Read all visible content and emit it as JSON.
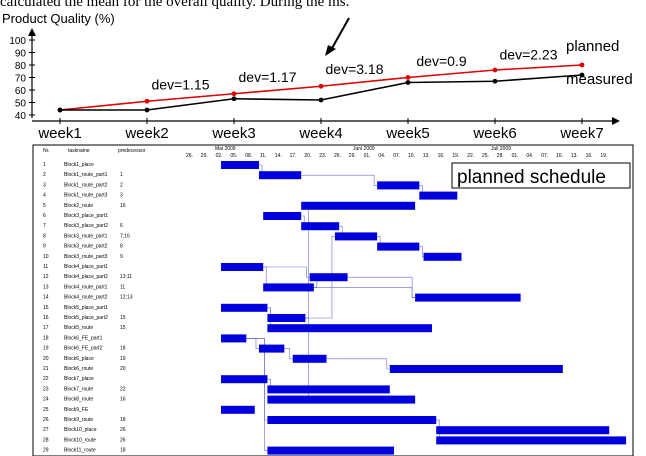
{
  "caption_fragment": "calculated the mean for the overall quality. During the ms.",
  "chart_data": [
    {
      "type": "line",
      "title": "Product Quality (%)",
      "categories": [
        "week1",
        "week2",
        "week3",
        "week4",
        "week5",
        "week6",
        "week7"
      ],
      "yticks": [
        40,
        50,
        60,
        70,
        80,
        90,
        100
      ],
      "ylim": [
        40,
        100
      ],
      "series": [
        {
          "name": "planned",
          "color": "#e00000",
          "values": [
            44,
            51,
            57,
            63,
            70,
            76,
            80
          ]
        },
        {
          "name": "measured",
          "color": "#000000",
          "values": [
            44,
            44,
            53,
            52,
            66,
            67,
            72
          ]
        }
      ],
      "annotations": [
        "dev=1.15",
        "dev=1.17",
        "dev=3.18",
        "dev=0.9",
        "dev=2.23"
      ],
      "arrow_target_week": "week4"
    }
  ],
  "schedule": {
    "label": "planned schedule",
    "headers": {
      "nr": "Nr.",
      "taskname": "taskname",
      "pred": "predecessor"
    },
    "months": [
      "Mai 2009",
      "Juni 2009",
      "Juli 2009"
    ],
    "days": [
      "26.",
      "29.",
      "02.",
      "05.",
      "08.",
      "11.",
      "14.",
      "17.",
      "20.",
      "23.",
      "26.",
      "29.",
      "01.",
      "04.",
      "07.",
      "10.",
      "13.",
      "16.",
      "19.",
      "22.",
      "25.",
      "28.",
      "01.",
      "04.",
      "07.",
      "10.",
      "13.",
      "16.",
      "19."
    ],
    "bar_color": "#0000dd",
    "tasks": [
      {
        "nr": "1",
        "name": "Block1_place",
        "pred": "",
        "start": 0,
        "dur": 9
      },
      {
        "nr": "2",
        "name": "Block1_route_part1",
        "pred": "1",
        "start": 9,
        "dur": 10
      },
      {
        "nr": "3",
        "name": "Block1_route_part2",
        "pred": "2",
        "start": 37,
        "dur": 10
      },
      {
        "nr": "4",
        "name": "Block1_route_part3",
        "pred": "3",
        "start": 47,
        "dur": 9
      },
      {
        "nr": "5",
        "name": "Block2_route",
        "pred": "16",
        "start": 19,
        "dur": 27
      },
      {
        "nr": "6",
        "name": "Block3_place_part1",
        "pred": "",
        "start": 10,
        "dur": 9
      },
      {
        "nr": "7",
        "name": "Block3_place_part2",
        "pred": "6",
        "start": 19,
        "dur": 9
      },
      {
        "nr": "8",
        "name": "Block3_route_part1",
        "pred": "7;16",
        "start": 27,
        "dur": 10
      },
      {
        "nr": "9",
        "name": "Block3_route_part2",
        "pred": "8",
        "start": 37,
        "dur": 10
      },
      {
        "nr": "10",
        "name": "Block3_route_part3",
        "pred": "9",
        "start": 48,
        "dur": 9
      },
      {
        "nr": "11",
        "name": "Block4_place_part1",
        "pred": "",
        "start": 0,
        "dur": 10
      },
      {
        "nr": "12",
        "name": "Block4_place_part2",
        "pred": "13;11",
        "start": 21,
        "dur": 9
      },
      {
        "nr": "13",
        "name": "Block4_route_part1",
        "pred": "11",
        "start": 10,
        "dur": 12
      },
      {
        "nr": "14",
        "name": "Block4_route_part2",
        "pred": "12;13",
        "start": 46,
        "dur": 25
      },
      {
        "nr": "15",
        "name": "Block5_place_part1",
        "pred": "",
        "start": 0,
        "dur": 11
      },
      {
        "nr": "16",
        "name": "Block5_place_part2",
        "pred": "15",
        "start": 11,
        "dur": 9
      },
      {
        "nr": "17",
        "name": "Block5_route",
        "pred": "15",
        "start": 11,
        "dur": 39
      },
      {
        "nr": "18",
        "name": "Block6_FE_part1",
        "pred": "",
        "start": 0,
        "dur": 6
      },
      {
        "nr": "19",
        "name": "Block6_FE_part2",
        "pred": "18",
        "start": 9,
        "dur": 6
      },
      {
        "nr": "20",
        "name": "Block6_place",
        "pred": "19",
        "start": 17,
        "dur": 8
      },
      {
        "nr": "21",
        "name": "Block6_route",
        "pred": "20",
        "start": 40,
        "dur": 41
      },
      {
        "nr": "22",
        "name": "Block7_place",
        "pred": "",
        "start": 0,
        "dur": 11
      },
      {
        "nr": "23",
        "name": "Block7_route",
        "pred": "22",
        "start": 11,
        "dur": 29
      },
      {
        "nr": "24",
        "name": "Block8_route",
        "pred": "16",
        "start": 11,
        "dur": 35
      },
      {
        "nr": "25",
        "name": "Block9_FE",
        "pred": "",
        "start": 0,
        "dur": 8
      },
      {
        "nr": "26",
        "name": "Block9_route",
        "pred": "18",
        "start": 11,
        "dur": 40
      },
      {
        "nr": "27",
        "name": "Block10_place",
        "pred": "26",
        "start": 51,
        "dur": 41
      },
      {
        "nr": "28",
        "name": "Block10_route",
        "pred": "26",
        "start": 51,
        "dur": 45
      },
      {
        "nr": "29",
        "name": "Block11_route",
        "pred": "18",
        "start": 11,
        "dur": 30
      }
    ]
  }
}
